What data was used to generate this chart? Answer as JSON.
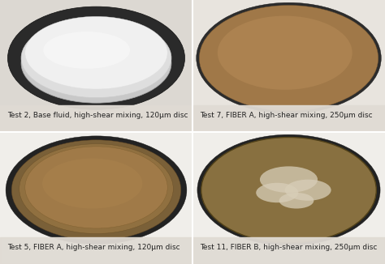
{
  "background_color": "#e8e4de",
  "captions": [
    "Test 2, Base fluid, high-shear mixing, 120μm disc",
    "Test 7, FIBER A, high-shear mixing, 250μm disc",
    "Test 5, FIBER A, high-shear mixing, 120μm disc",
    "Test 11, FIBER B, high-shear mixing, 250μm disc"
  ],
  "caption_fontsize": 6.5,
  "caption_color": "#222222",
  "panel_bg": [
    "#dcd8d2",
    "#e8e4de",
    "#f0eeea",
    "#f0eeea"
  ],
  "figsize": [
    4.74,
    3.26
  ],
  "dpi": 100
}
